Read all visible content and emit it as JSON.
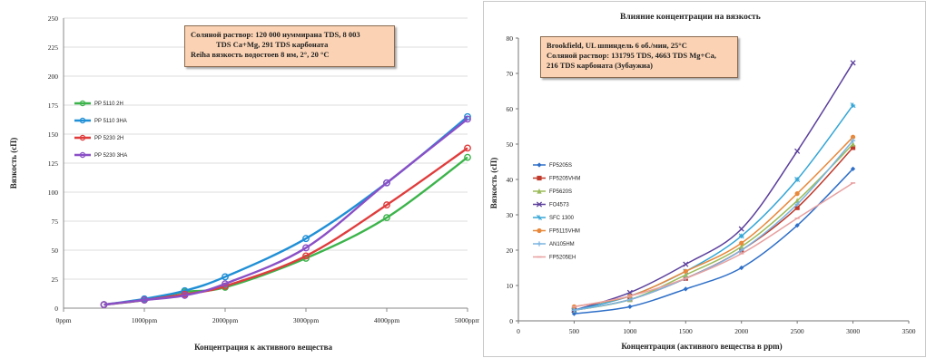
{
  "chart_data": [
    {
      "type": "line",
      "title": "",
      "xlabel": "Концентрация к активного вещества",
      "ylabel": "Вязкость (сП)",
      "categories": [
        "0ppm",
        "1000ppm",
        "2000ppm",
        "3000ppm",
        "4000ppm",
        "5000ppm"
      ],
      "x": [
        500,
        1000,
        1500,
        2000,
        3000,
        4000,
        5000
      ],
      "ylim": [
        0,
        250
      ],
      "yticks": [
        "0",
        "25",
        "50",
        "75",
        "100",
        "125",
        "150",
        "175",
        "200",
        "225",
        "250"
      ],
      "grid": true,
      "legend_position": "top-left",
      "annotation": [
        "Соляной раствор: 120 000 нуммирана TDS, 8 003",
        "TDS Ca+Mg, 291 TDS карбоната",
        "Reiha вязкость водостоев 8 им, 2°, 20 °C"
      ],
      "series": [
        {
          "name": "PP 5110 2H",
          "color": "#3cb44b",
          "values": [
            3,
            7,
            14,
            18,
            43,
            78,
            130
          ]
        },
        {
          "name": "PP 5110 3HA",
          "color": "#1f8fd6",
          "values": [
            3,
            8,
            15,
            27,
            60,
            108,
            165
          ]
        },
        {
          "name": "PP 5230 2H",
          "color": "#e03c3c",
          "values": [
            3,
            7,
            12,
            19,
            45,
            89,
            138
          ]
        },
        {
          "name": "PP 5230 3HA",
          "color": "#8a4fc6",
          "values": [
            3,
            7,
            11,
            21,
            52,
            108,
            163
          ]
        }
      ]
    },
    {
      "type": "line",
      "title": "Влияние концентрации на вязкость",
      "xlabel": "Концентрация (активного вещества в ppm)",
      "ylabel": "Вязкость (сП)",
      "x": [
        500,
        1000,
        1500,
        2000,
        2500,
        3000
      ],
      "xlim": [
        0,
        3500
      ],
      "xticks": [
        "0",
        "500",
        "1000",
        "1500",
        "2000",
        "2500",
        "3000",
        "3500"
      ],
      "ylim": [
        0,
        80
      ],
      "yticks": [
        "0",
        "10",
        "20",
        "30",
        "40",
        "50",
        "60",
        "70",
        "80"
      ],
      "grid": false,
      "legend_position": "left",
      "annotation": [
        "Brookfield, UL шпиндель 6 об./мин, 25°C",
        "Соляной раствор: 131795 TDS, 4663 TDS Mg+Ca,",
        "216 TDS карбоната (Зубаужиа)"
      ],
      "series": [
        {
          "name": "FP5205S",
          "color": "#2e6fc8",
          "values": [
            2,
            4,
            9,
            15,
            27,
            43
          ]
        },
        {
          "name": "FP5205VHM",
          "color": "#c0392b",
          "values": [
            3,
            6,
            12,
            20,
            32,
            49
          ]
        },
        {
          "name": "FP5620S",
          "color": "#9bbb59",
          "values": [
            3,
            6,
            13,
            21,
            34,
            50
          ]
        },
        {
          "name": "FO4573",
          "color": "#5b3f9c",
          "values": [
            3,
            8,
            16,
            26,
            48,
            73
          ]
        },
        {
          "name": "SFC 1300",
          "color": "#34a6d6",
          "values": [
            3,
            7,
            14,
            24,
            40,
            61
          ]
        },
        {
          "name": "FP5115VHM",
          "color": "#e8883a",
          "values": [
            4,
            7,
            14,
            22,
            36,
            52
          ]
        },
        {
          "name": "AN105HM",
          "color": "#7bb4e0",
          "values": [
            3,
            6,
            12,
            20,
            33,
            51
          ]
        },
        {
          "name": "FP5205EH",
          "color": "#e8a0a0",
          "values": [
            4,
            7,
            12,
            19,
            29,
            39
          ]
        }
      ]
    }
  ]
}
